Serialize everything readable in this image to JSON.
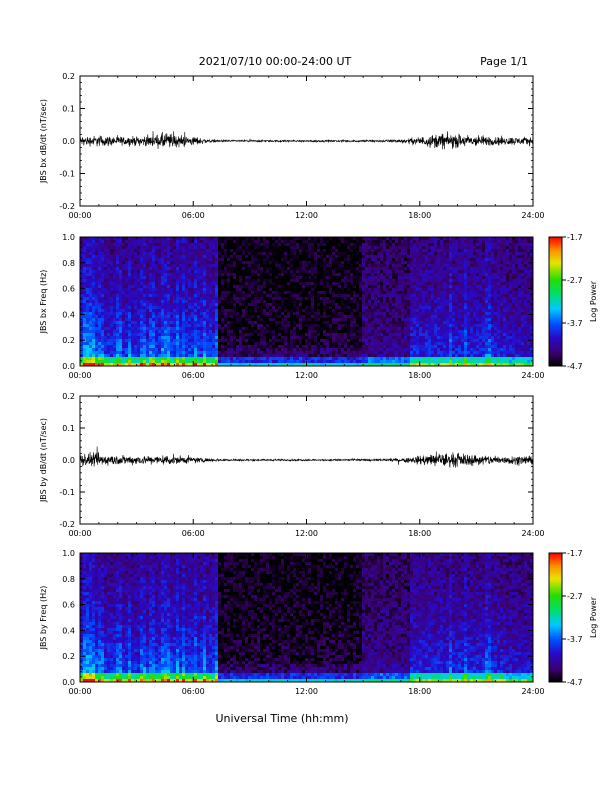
{
  "header": {
    "title": "2021/07/10  00:00-24:00 UT",
    "page": "Page 1/1"
  },
  "xaxis": {
    "title": "Universal Time (hh:mm)",
    "ticks": [
      "00:00",
      "06:00",
      "12:00",
      "18:00",
      "24:00"
    ]
  },
  "chart_data": [
    {
      "type": "line",
      "title": "",
      "ylabel": "JBS bx dB/dt (nT/sec)",
      "xlabel": "",
      "xlim": [
        0,
        24
      ],
      "ylim": [
        -0.2,
        0.2
      ],
      "yticks": [
        "0.2",
        "0.1",
        "0.0",
        "-0.1",
        "-0.2"
      ],
      "xticks": [
        "00:00",
        "06:00",
        "12:00",
        "18:00",
        "24:00"
      ],
      "grid": false,
      "series": [
        {
          "values_description_hours": [
            0,
            1,
            2,
            3,
            4,
            4.5,
            5,
            6,
            7,
            8,
            10,
            12,
            14,
            16,
            17,
            18,
            19,
            20,
            21,
            22,
            23,
            24
          ],
          "amplitude": [
            0.02,
            0.025,
            0.02,
            0.02,
            0.025,
            0.04,
            0.03,
            0.02,
            0.006,
            0.004,
            0.004,
            0.004,
            0.004,
            0.005,
            0.008,
            0.018,
            0.035,
            0.03,
            0.025,
            0.02,
            0.018,
            0.018
          ]
        }
      ]
    },
    {
      "type": "heatmap",
      "title": "",
      "ylabel": "JBS bx Freq (Hz)",
      "xlabel": "",
      "xlim": [
        0,
        24
      ],
      "ylim": [
        0.0,
        1.0
      ],
      "yticks": [
        "1.0",
        "0.8",
        "0.6",
        "0.4",
        "0.2",
        "0.0"
      ],
      "xticks": [
        "00:00",
        "06:00",
        "12:00",
        "18:00",
        "24:00"
      ],
      "colorbar": {
        "label": "Log Power",
        "ticks": [
          "-1.7",
          "-2.7",
          "-3.7",
          "-4.7"
        ],
        "range": [
          -4.7,
          -1.7
        ]
      }
    },
    {
      "type": "line",
      "title": "",
      "ylabel": "JBS by dB/dt (nT/sec)",
      "xlabel": "",
      "xlim": [
        0,
        24
      ],
      "ylim": [
        -0.2,
        0.2
      ],
      "yticks": [
        "0.2",
        "0.1",
        "0.0",
        "-0.1",
        "-0.2"
      ],
      "xticks": [
        "00:00",
        "06:00",
        "12:00",
        "18:00",
        "24:00"
      ],
      "grid": false,
      "series": [
        {
          "values_description_hours": [
            0,
            1,
            2,
            3,
            4,
            4.5,
            5,
            6,
            7,
            8,
            10,
            12,
            14,
            16,
            17,
            18,
            19,
            20,
            21,
            22,
            23,
            24
          ],
          "amplitude": [
            0.03,
            0.03,
            0.022,
            0.02,
            0.02,
            0.022,
            0.02,
            0.015,
            0.006,
            0.004,
            0.004,
            0.004,
            0.004,
            0.005,
            0.008,
            0.02,
            0.035,
            0.03,
            0.025,
            0.02,
            0.02,
            0.018
          ]
        }
      ]
    },
    {
      "type": "heatmap",
      "title": "",
      "ylabel": "JBS by Freq (Hz)",
      "xlabel": "",
      "xlim": [
        0,
        24
      ],
      "ylim": [
        0.0,
        1.0
      ],
      "yticks": [
        "1.0",
        "0.8",
        "0.6",
        "0.4",
        "0.2",
        "0.0"
      ],
      "xticks": [
        "00:00",
        "06:00",
        "12:00",
        "18:00",
        "24:00"
      ],
      "colorbar": {
        "label": "Log Power",
        "ticks": [
          "-1.7",
          "-2.7",
          "-3.7",
          "-4.7"
        ],
        "range": [
          -4.7,
          -1.7
        ]
      }
    }
  ]
}
